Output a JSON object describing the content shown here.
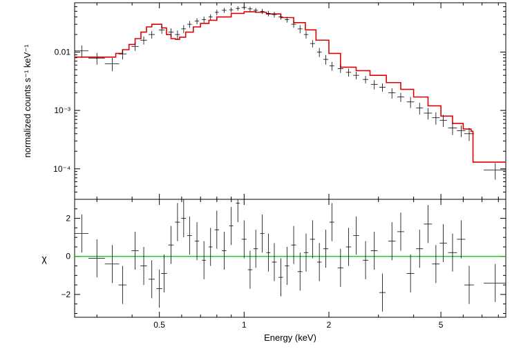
{
  "chart_data": [
    {
      "type": "line",
      "panel": "spectrum",
      "xlabel": "",
      "ylabel": "normalized counts s⁻¹ keV⁻¹",
      "xscale": "log",
      "yscale": "log",
      "xlim": [
        0.25,
        8.5
      ],
      "ylim": [
        3e-05,
        0.07
      ],
      "yticks": [
        {
          "value": 0.01,
          "label": "0.01"
        },
        {
          "value": 0.001,
          "label": "10⁻³"
        },
        {
          "value": 0.0001,
          "label": "10⁻⁴"
        }
      ],
      "series": [
        {
          "kind": "model",
          "color": "#e00000",
          "x": [
            0.25,
            0.33,
            0.35,
            0.37,
            0.39,
            0.41,
            0.43,
            0.45,
            0.47,
            0.49,
            0.51,
            0.53,
            0.55,
            0.57,
            0.59,
            0.62,
            0.66,
            0.7,
            0.75,
            0.8,
            0.9,
            1.0,
            1.1,
            1.2,
            1.35,
            1.5,
            1.65,
            1.8,
            2.0,
            2.2,
            2.5,
            2.8,
            3.2,
            3.6,
            4.0,
            4.5,
            5.0,
            5.5,
            6.0,
            6.4,
            6.5,
            8.5
          ],
          "y": [
            0.0082,
            0.0082,
            0.0095,
            0.011,
            0.0135,
            0.017,
            0.022,
            0.027,
            0.03,
            0.03,
            0.026,
            0.02,
            0.017,
            0.0165,
            0.018,
            0.022,
            0.027,
            0.031,
            0.035,
            0.04,
            0.046,
            0.049,
            0.048,
            0.045,
            0.039,
            0.032,
            0.024,
            0.016,
            0.0095,
            0.0055,
            0.0048,
            0.004,
            0.003,
            0.0023,
            0.0017,
            0.0012,
            0.0008,
            0.0006,
            0.00048,
            0.00044,
            0.00013,
            0.00013
          ]
        },
        {
          "kind": "data",
          "color": "#000000",
          "x": [
            0.265,
            0.3,
            0.34,
            0.37,
            0.41,
            0.44,
            0.47,
            0.51,
            0.55,
            0.58,
            0.61,
            0.64,
            0.68,
            0.72,
            0.76,
            0.8,
            0.85,
            0.9,
            0.95,
            1.0,
            1.05,
            1.1,
            1.16,
            1.22,
            1.28,
            1.35,
            1.42,
            1.5,
            1.58,
            1.66,
            1.75,
            1.85,
            1.95,
            2.05,
            2.2,
            2.35,
            2.5,
            2.7,
            2.9,
            3.1,
            3.35,
            3.6,
            3.9,
            4.2,
            4.5,
            4.8,
            5.1,
            5.5,
            5.9,
            6.3,
            7.8
          ],
          "y": [
            0.0105,
            0.0079,
            0.0063,
            0.0093,
            0.0125,
            0.016,
            0.02,
            0.024,
            0.022,
            0.02,
            0.025,
            0.03,
            0.034,
            0.036,
            0.04,
            0.048,
            0.052,
            0.053,
            0.056,
            0.058,
            0.055,
            0.052,
            0.05,
            0.046,
            0.044,
            0.04,
            0.036,
            0.03,
            0.025,
            0.02,
            0.014,
            0.01,
            0.0075,
            0.0058,
            0.0052,
            0.0045,
            0.004,
            0.0034,
            0.0028,
            0.0025,
            0.002,
            0.0017,
            0.0014,
            0.0011,
            0.0009,
            0.00075,
            0.00068,
            0.0005,
            0.00045,
            0.0004,
            9.5e-05
          ],
          "xerr": [
            0.015,
            0.02,
            0.02,
            0.012,
            0.012,
            0.012,
            0.012,
            0.012,
            0.012,
            0.012,
            0.012,
            0.012,
            0.012,
            0.012,
            0.012,
            0.012,
            0.015,
            0.015,
            0.015,
            0.02,
            0.02,
            0.02,
            0.02,
            0.02,
            0.025,
            0.025,
            0.025,
            0.03,
            0.03,
            0.03,
            0.035,
            0.035,
            0.04,
            0.04,
            0.05,
            0.05,
            0.06,
            0.06,
            0.08,
            0.08,
            0.1,
            0.1,
            0.12,
            0.12,
            0.15,
            0.15,
            0.15,
            0.2,
            0.2,
            0.25,
            0.7
          ],
          "yerr": [
            0.0025,
            0.0018,
            0.0016,
            0.0018,
            0.002,
            0.0025,
            0.003,
            0.0035,
            0.0035,
            0.0035,
            0.004,
            0.004,
            0.004,
            0.0045,
            0.0045,
            0.005,
            0.005,
            0.005,
            0.005,
            0.005,
            0.005,
            0.005,
            0.005,
            0.005,
            0.005,
            0.004,
            0.004,
            0.004,
            0.004,
            0.003,
            0.002,
            0.0018,
            0.0014,
            0.001,
            0.0008,
            0.0007,
            0.0006,
            0.0005,
            0.0005,
            0.0004,
            0.0004,
            0.0003,
            0.0003,
            0.00025,
            0.0002,
            0.00018,
            0.00016,
            0.00012,
            0.0001,
            0.0001,
            3e-05
          ]
        }
      ]
    },
    {
      "type": "scatter",
      "panel": "residuals",
      "xlabel": "Energy (keV)",
      "ylabel": "χ",
      "xscale": "log",
      "xlim": [
        0.25,
        8.5
      ],
      "ylim": [
        -3.2,
        3.0
      ],
      "xticks": [
        {
          "value": 0.5,
          "label": "0.5"
        },
        {
          "value": 1,
          "label": "1"
        },
        {
          "value": 2,
          "label": "2"
        },
        {
          "value": 5,
          "label": "5"
        }
      ],
      "yticks": [
        {
          "value": 2,
          "label": "2"
        },
        {
          "value": 0,
          "label": "0"
        },
        {
          "value": -2,
          "label": "−2"
        }
      ],
      "zero_line_color": "#00c000",
      "x": [
        0.265,
        0.3,
        0.34,
        0.37,
        0.41,
        0.44,
        0.47,
        0.5,
        0.52,
        0.55,
        0.58,
        0.61,
        0.64,
        0.68,
        0.72,
        0.76,
        0.8,
        0.85,
        0.9,
        0.95,
        1.0,
        1.05,
        1.1,
        1.16,
        1.22,
        1.28,
        1.35,
        1.42,
        1.5,
        1.58,
        1.66,
        1.75,
        1.85,
        1.95,
        2.05,
        2.2,
        2.35,
        2.5,
        2.7,
        2.9,
        3.1,
        3.35,
        3.6,
        3.9,
        4.2,
        4.5,
        4.8,
        5.1,
        5.5,
        5.9,
        6.3,
        7.8
      ],
      "y": [
        1.2,
        -0.1,
        -0.4,
        -1.5,
        0.3,
        -0.5,
        -1.2,
        -1.7,
        -0.9,
        0.6,
        1.8,
        2.0,
        1.1,
        0.8,
        -0.2,
        0.5,
        1.4,
        0.3,
        1.6,
        2.8,
        0.9,
        -0.7,
        0.4,
        1.2,
        0.2,
        -0.3,
        -1.1,
        -0.5,
        0.6,
        -0.8,
        0.2,
        0.9,
        -0.3,
        0.4,
        1.8,
        -0.6,
        0.5,
        1.1,
        -0.2,
        0.3,
        -1.9,
        0.8,
        1.3,
        -0.9,
        0.4,
        1.7,
        -0.4,
        0.7,
        0.2,
        0.9,
        -1.5,
        -1.4
      ],
      "xerr": [
        0.015,
        0.02,
        0.02,
        0.012,
        0.012,
        0.012,
        0.012,
        0.012,
        0.012,
        0.012,
        0.012,
        0.012,
        0.012,
        0.012,
        0.012,
        0.012,
        0.015,
        0.015,
        0.015,
        0.015,
        0.02,
        0.02,
        0.02,
        0.02,
        0.02,
        0.025,
        0.025,
        0.025,
        0.03,
        0.03,
        0.03,
        0.035,
        0.035,
        0.04,
        0.04,
        0.05,
        0.05,
        0.06,
        0.06,
        0.08,
        0.08,
        0.1,
        0.1,
        0.12,
        0.12,
        0.15,
        0.15,
        0.15,
        0.2,
        0.2,
        0.25,
        0.7
      ],
      "yerr": [
        1,
        1,
        1,
        1,
        1,
        1,
        1,
        1,
        1,
        1,
        1,
        1,
        1,
        1,
        1,
        1,
        1,
        1,
        1,
        1,
        1,
        1,
        1,
        1,
        1,
        1,
        1,
        1,
        1,
        1,
        1,
        1,
        1,
        1,
        1,
        1,
        1,
        1,
        1,
        1,
        1,
        1,
        1,
        1,
        1,
        1,
        1,
        1,
        1,
        1,
        1,
        1
      ]
    }
  ]
}
